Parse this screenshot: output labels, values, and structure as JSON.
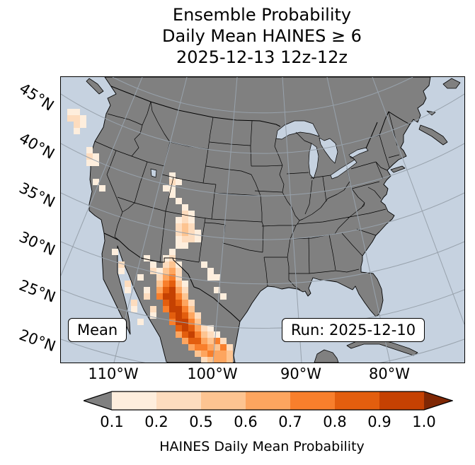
{
  "title": {
    "line1": "Ensemble Probability",
    "line2": "Daily Mean HAINES ≥ 6",
    "line3": "2025-12-13 12z-12z"
  },
  "map": {
    "mean_label": "Mean",
    "run_label": "Run: 2025-12-10",
    "lat_labels": [
      "45°N",
      "40°N",
      "35°N",
      "30°N",
      "25°N",
      "20°N"
    ],
    "lon_labels": [
      "110°W",
      "100°W",
      "90°W",
      "80°W"
    ],
    "colors": {
      "ocean": "#c6d2e0",
      "land": "#808080",
      "grid": "#98a2ac",
      "outline": "#000000"
    },
    "cell_size": 9,
    "cells": [
      [
        1,
        5,
        1
      ],
      [
        2,
        5,
        1
      ],
      [
        1,
        6,
        2
      ],
      [
        2,
        6,
        2
      ],
      [
        3,
        6,
        1
      ],
      [
        2,
        7,
        2
      ],
      [
        3,
        7,
        1
      ],
      [
        2,
        8,
        1
      ],
      [
        4,
        11,
        1
      ],
      [
        4,
        12,
        2
      ],
      [
        5,
        12,
        1
      ],
      [
        4,
        13,
        1
      ],
      [
        5,
        13,
        1
      ],
      [
        5,
        16,
        1
      ],
      [
        6,
        17,
        1
      ],
      [
        17,
        15,
        1
      ],
      [
        17,
        16,
        2
      ],
      [
        18,
        16,
        1
      ],
      [
        16,
        17,
        1
      ],
      [
        17,
        17,
        1
      ],
      [
        17,
        18,
        1
      ],
      [
        18,
        19,
        1
      ],
      [
        19,
        20,
        1
      ],
      [
        19,
        21,
        2
      ],
      [
        20,
        21,
        1
      ],
      [
        18,
        22,
        1
      ],
      [
        19,
        22,
        2
      ],
      [
        20,
        22,
        1
      ],
      [
        18,
        23,
        2
      ],
      [
        19,
        23,
        3
      ],
      [
        20,
        23,
        2
      ],
      [
        18,
        24,
        2
      ],
      [
        19,
        24,
        3
      ],
      [
        20,
        24,
        2
      ],
      [
        21,
        24,
        1
      ],
      [
        18,
        25,
        1
      ],
      [
        19,
        25,
        2
      ],
      [
        20,
        25,
        2
      ],
      [
        21,
        25,
        1
      ],
      [
        18,
        26,
        1
      ],
      [
        19,
        26,
        1
      ],
      [
        22,
        29,
        1
      ],
      [
        23,
        30,
        1
      ],
      [
        23,
        31,
        1
      ],
      [
        24,
        31,
        1
      ],
      [
        24,
        33,
        1
      ],
      [
        25,
        34,
        1
      ],
      [
        13,
        28,
        1
      ],
      [
        14,
        29,
        1
      ],
      [
        14,
        30,
        2
      ],
      [
        8,
        27,
        1
      ],
      [
        9,
        29,
        2
      ],
      [
        9,
        30,
        1
      ],
      [
        10,
        32,
        2
      ],
      [
        10,
        33,
        1
      ],
      [
        11,
        35,
        2
      ],
      [
        11,
        36,
        1
      ],
      [
        12,
        38,
        1
      ],
      [
        12,
        31,
        1
      ],
      [
        13,
        33,
        1
      ],
      [
        13,
        34,
        2
      ],
      [
        14,
        36,
        2
      ],
      [
        14,
        37,
        1
      ],
      [
        17,
        27,
        1
      ],
      [
        16,
        28,
        1
      ],
      [
        17,
        28,
        2
      ],
      [
        16,
        29,
        2
      ],
      [
        17,
        29,
        3
      ],
      [
        18,
        29,
        1
      ],
      [
        15,
        30,
        1
      ],
      [
        16,
        30,
        3
      ],
      [
        17,
        30,
        4
      ],
      [
        18,
        30,
        2
      ],
      [
        15,
        31,
        2
      ],
      [
        16,
        31,
        4
      ],
      [
        17,
        31,
        5
      ],
      [
        18,
        31,
        2
      ],
      [
        15,
        32,
        3
      ],
      [
        16,
        32,
        5
      ],
      [
        17,
        32,
        6
      ],
      [
        18,
        32,
        3
      ],
      [
        19,
        32,
        1
      ],
      [
        15,
        33,
        4
      ],
      [
        16,
        33,
        6
      ],
      [
        17,
        33,
        7
      ],
      [
        18,
        33,
        4
      ],
      [
        19,
        33,
        2
      ],
      [
        15,
        34,
        5
      ],
      [
        16,
        34,
        7
      ],
      [
        17,
        34,
        7
      ],
      [
        18,
        34,
        5
      ],
      [
        19,
        34,
        3
      ],
      [
        16,
        35,
        6
      ],
      [
        17,
        35,
        7
      ],
      [
        18,
        35,
        6
      ],
      [
        19,
        35,
        4
      ],
      [
        20,
        35,
        2
      ],
      [
        16,
        36,
        5
      ],
      [
        17,
        36,
        7
      ],
      [
        18,
        36,
        7
      ],
      [
        19,
        36,
        5
      ],
      [
        20,
        36,
        3
      ],
      [
        17,
        37,
        6
      ],
      [
        18,
        37,
        7
      ],
      [
        19,
        37,
        6
      ],
      [
        20,
        37,
        4
      ],
      [
        21,
        37,
        2
      ],
      [
        17,
        38,
        5
      ],
      [
        18,
        38,
        7
      ],
      [
        19,
        38,
        7
      ],
      [
        20,
        38,
        5
      ],
      [
        21,
        38,
        3
      ],
      [
        18,
        39,
        6
      ],
      [
        19,
        39,
        7
      ],
      [
        20,
        39,
        6
      ],
      [
        21,
        39,
        4
      ],
      [
        22,
        39,
        2
      ],
      [
        23,
        39,
        1
      ],
      [
        18,
        40,
        4
      ],
      [
        19,
        40,
        6
      ],
      [
        20,
        40,
        7
      ],
      [
        21,
        40,
        5
      ],
      [
        22,
        40,
        3
      ],
      [
        23,
        40,
        2
      ],
      [
        24,
        40,
        1
      ],
      [
        19,
        41,
        4
      ],
      [
        20,
        41,
        6
      ],
      [
        21,
        41,
        6
      ],
      [
        22,
        41,
        4
      ],
      [
        23,
        41,
        3
      ],
      [
        24,
        41,
        5
      ],
      [
        25,
        41,
        2
      ],
      [
        20,
        42,
        4
      ],
      [
        21,
        42,
        5
      ],
      [
        22,
        42,
        5
      ],
      [
        23,
        42,
        4
      ],
      [
        24,
        42,
        3
      ],
      [
        25,
        42,
        5
      ],
      [
        26,
        42,
        2
      ],
      [
        21,
        43,
        3
      ],
      [
        22,
        43,
        4
      ],
      [
        23,
        43,
        5
      ],
      [
        24,
        43,
        4
      ],
      [
        25,
        43,
        4
      ],
      [
        26,
        43,
        3
      ],
      [
        22,
        44,
        2
      ],
      [
        23,
        44,
        3
      ],
      [
        24,
        44,
        4
      ],
      [
        25,
        44,
        4
      ],
      [
        26,
        44,
        3
      ]
    ]
  },
  "colorbar": {
    "label": "HAINES Daily Mean Probability",
    "ticks": [
      "0.1",
      "0.2",
      "0.5",
      "0.6",
      "0.7",
      "0.8",
      "0.9",
      "1.0"
    ],
    "tick_values": [
      0.1,
      0.2,
      0.5,
      0.6,
      0.7,
      0.8,
      0.9,
      1.0
    ],
    "segment_colors": [
      "#feeedd",
      "#fddcbe",
      "#fdc491",
      "#fda55f",
      "#f87f2c",
      "#e35e0e",
      "#c54102"
    ],
    "under_color": "#808080",
    "over_color": "#7f2704"
  },
  "chart_data": {
    "type": "heatmap",
    "title": "Ensemble Probability Daily Mean HAINES ≥ 6 2025-12-13 12z-12z",
    "colorbar_label": "HAINES Daily Mean Probability",
    "colorbar_boundaries": [
      0.1,
      0.2,
      0.5,
      0.6,
      0.7,
      0.8,
      0.9,
      1.0
    ],
    "legend_position": "bottom",
    "region": "CONUS and northern Mexico, lat 20N-50N, lon 120W-70W",
    "notes": "Probability shading concentrated over Sierra Madre Occidental in northwest Mexico (values up to 1.0), a lighter band over New Mexico / west Texas, and sparse 0.1-0.5 cells over the Pacific Northwest coast, California and Baja California."
  }
}
